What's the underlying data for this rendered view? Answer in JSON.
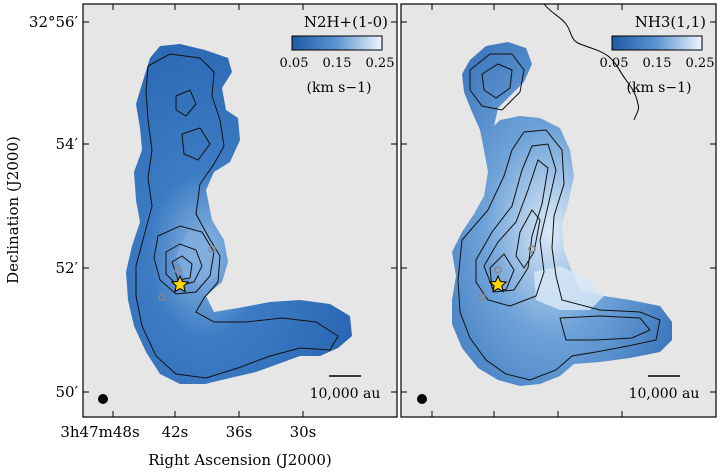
{
  "figure": {
    "y_axis_label": "Declination (J2000)",
    "x_axis_label": "Right Ascension (J2000)",
    "dec_ticks": [
      {
        "label": "32°56′"
      },
      {
        "label": "54′"
      },
      {
        "label": "52′"
      },
      {
        "label": "50′"
      }
    ],
    "ra_ticks": [
      {
        "label": "3h47m48s"
      },
      {
        "label": "42s"
      },
      {
        "label": "36s"
      },
      {
        "label": "30s"
      }
    ],
    "colors": {
      "background": "#e6e6e6",
      "map_dark": "#1f5aa6",
      "map_light": "#e8f1fb",
      "star": "#ffd700",
      "contour": "#111111"
    }
  },
  "panels": [
    {
      "molecule_label": "N2H+(1-0)",
      "colorbar_ticks": [
        "0.05",
        "0.15",
        "0.25"
      ],
      "colorbar_unit": "(km s−1)",
      "scale_bar_label": "10,000 au"
    },
    {
      "molecule_label": "NH3(1,1)",
      "colorbar_ticks": [
        "0.05",
        "0.15",
        "0.25"
      ],
      "colorbar_unit": "(km s−1)",
      "scale_bar_label": "10,000 au"
    }
  ]
}
